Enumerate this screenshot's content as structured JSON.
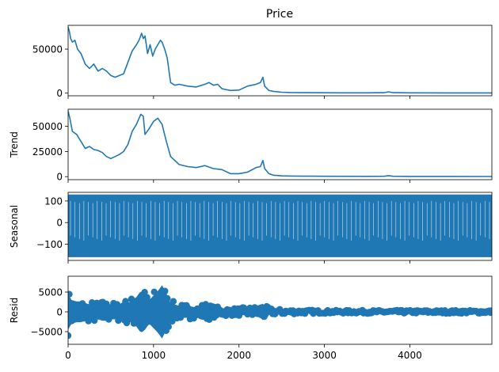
{
  "chart_data": {
    "type": "line",
    "title": "Price",
    "color": "#1f77b4",
    "x_range": [
      0,
      4960
    ],
    "xticks": [
      0,
      1000,
      2000,
      3000,
      4000
    ],
    "panels": [
      {
        "id": "observed",
        "ylabel": "",
        "style": "line",
        "ylim": [
          -3000,
          77000
        ],
        "yticks": [
          0,
          50000
        ],
        "x": [
          0,
          15,
          30,
          50,
          80,
          110,
          150,
          200,
          250,
          300,
          350,
          400,
          450,
          500,
          550,
          600,
          650,
          700,
          750,
          800,
          830,
          860,
          880,
          900,
          930,
          960,
          990,
          1020,
          1050,
          1080,
          1100,
          1130,
          1160,
          1200,
          1250,
          1300,
          1400,
          1500,
          1600,
          1650,
          1700,
          1750,
          1800,
          1900,
          2000,
          2100,
          2200,
          2250,
          2280,
          2300,
          2350,
          2400,
          2500,
          2600,
          2800,
          3000,
          3200,
          3500,
          3700,
          3750,
          3800,
          4000,
          4500,
          4960
        ],
        "y": [
          75000,
          70000,
          62000,
          58000,
          60000,
          50000,
          45000,
          33000,
          28000,
          33000,
          25000,
          28000,
          25000,
          20000,
          18000,
          20000,
          22000,
          35000,
          48000,
          55000,
          60000,
          68000,
          62000,
          65000,
          45000,
          55000,
          42000,
          50000,
          55000,
          60000,
          58000,
          50000,
          40000,
          12000,
          9000,
          10000,
          8000,
          7000,
          10000,
          12000,
          9000,
          10000,
          5000,
          3000,
          3500,
          8000,
          10000,
          12000,
          18000,
          8000,
          3000,
          2000,
          1000,
          700,
          500,
          400,
          350,
          300,
          500,
          1500,
          500,
          300,
          250,
          200
        ]
      },
      {
        "id": "trend",
        "ylabel": "Trend",
        "style": "line",
        "ylim": [
          -3000,
          67000
        ],
        "yticks": [
          0,
          25000,
          50000
        ],
        "x": [
          0,
          20,
          50,
          100,
          150,
          200,
          250,
          300,
          350,
          400,
          450,
          500,
          550,
          600,
          650,
          700,
          750,
          800,
          850,
          880,
          900,
          950,
          1000,
          1050,
          1100,
          1150,
          1200,
          1300,
          1400,
          1500,
          1600,
          1700,
          1800,
          1900,
          2000,
          2100,
          2200,
          2250,
          2280,
          2300,
          2350,
          2400,
          2500,
          2600,
          2800,
          3000,
          3500,
          3700,
          3750,
          3800,
          4000,
          4500,
          4960
        ],
        "y": [
          65000,
          58000,
          45000,
          42000,
          35000,
          28000,
          30000,
          27000,
          26000,
          24000,
          20000,
          18000,
          20000,
          22000,
          25000,
          32000,
          45000,
          52000,
          62000,
          60000,
          42000,
          48000,
          55000,
          58000,
          52000,
          35000,
          20000,
          12000,
          10000,
          9000,
          11000,
          8000,
          7000,
          3000,
          3000,
          4500,
          9000,
          10000,
          16000,
          8000,
          3000,
          1500,
          800,
          600,
          450,
          350,
          300,
          400,
          1000,
          400,
          250,
          200,
          150
        ]
      },
      {
        "id": "seasonal",
        "ylabel": "Seasonal",
        "style": "band",
        "ylim": [
          -175,
          140
        ],
        "yticks": [
          -100,
          0,
          100
        ],
        "band": [
          -160,
          130
        ]
      },
      {
        "id": "resid",
        "ylabel": "Resid",
        "style": "scatter",
        "ylim": [
          -8200,
          9000
        ],
        "yticks": [
          -5000,
          0,
          5000
        ],
        "x": [
          0,
          40,
          100,
          150,
          200,
          250,
          300,
          350,
          400,
          450,
          500,
          550,
          600,
          650,
          700,
          750,
          800,
          850,
          880,
          900,
          950,
          1000,
          1050,
          1100,
          1150,
          1200,
          1300,
          1400,
          1500,
          1600,
          1700,
          1800,
          1900,
          2000,
          2100,
          2200,
          2250,
          2280,
          2300,
          2350,
          2400,
          2600,
          2800,
          3000,
          3500,
          4000,
          4500,
          4960
        ],
        "amp": [
          6000,
          4000,
          3500,
          3500,
          3000,
          2500,
          3000,
          2500,
          3000,
          3000,
          2500,
          2500,
          2500,
          3500,
          3000,
          4000,
          5000,
          7000,
          6500,
          6000,
          4000,
          5500,
          7000,
          9000,
          6000,
          3000,
          2000,
          2000,
          1500,
          2500,
          1500,
          1200,
          1000,
          1000,
          1200,
          1500,
          2000,
          2800,
          1800,
          1000,
          800,
          600,
          500,
          400,
          400,
          400,
          400,
          400
        ]
      }
    ]
  }
}
